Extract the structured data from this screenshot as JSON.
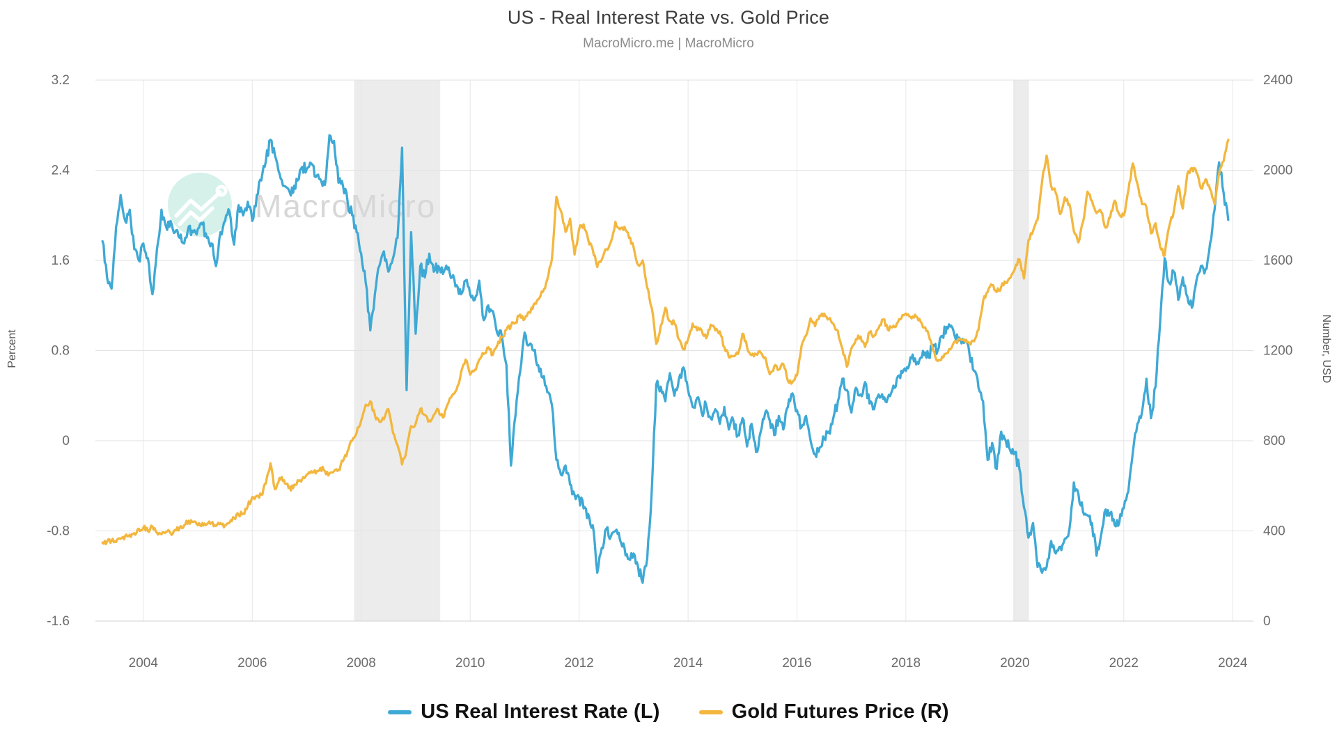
{
  "title": "US - Real Interest Rate vs. Gold Price",
  "subtitle": "MacroMicro.me | MacroMicro",
  "watermark": {
    "text": "MacroMicro",
    "icon": "macromicro-logo-icon",
    "circle_color": "#d5f1ea",
    "text_color": "#d7d7d7"
  },
  "legend": [
    {
      "label": "US Real Interest Rate (L)",
      "color": "#3FA9D5"
    },
    {
      "label": "Gold Futures Price (R)",
      "color": "#F3B73F"
    }
  ],
  "chart_data": {
    "type": "line",
    "title": "US - Real Interest Rate vs. Gold Price",
    "subtitle": "MacroMicro.me | MacroMicro",
    "x_start": 2003.25,
    "x_step_months": 1,
    "x_axis": {
      "tick_labels": [
        "2004",
        "2006",
        "2008",
        "2010",
        "2012",
        "2014",
        "2016",
        "2018",
        "2020",
        "2022",
        "2024"
      ],
      "tick_values": [
        2004,
        2006,
        2008,
        2010,
        2012,
        2014,
        2016,
        2018,
        2020,
        2022,
        2024
      ]
    },
    "y_left": {
      "label": "Percent",
      "range": [
        -1.6,
        3.2
      ],
      "tick_values": [
        3.2,
        2.4,
        1.6,
        0.8,
        0,
        -0.8,
        -1.6
      ],
      "tick_labels": [
        "3.2",
        "2.4",
        "1.6",
        "0.8",
        "0",
        "-0.8",
        "-1.6"
      ]
    },
    "y_right": {
      "label": "Number, USD",
      "range": [
        0,
        2400
      ],
      "tick_values": [
        2400,
        2000,
        1600,
        1200,
        800,
        400,
        0
      ],
      "tick_labels": [
        "2400",
        "2000",
        "1600",
        "1200",
        "800",
        "400",
        "0"
      ]
    },
    "recession_bands": [
      [
        2007.87,
        2009.45
      ],
      [
        2019.97,
        2020.26
      ]
    ],
    "grid": true,
    "legend_position": "bottom",
    "series": [
      {
        "name": "US Real Interest Rate (L)",
        "axis": "left",
        "color": "#3FA9D5",
        "values": [
          1.77,
          1.45,
          1.35,
          1.9,
          2.18,
          1.95,
          2.05,
          1.7,
          1.6,
          1.75,
          1.62,
          1.3,
          1.7,
          2.05,
          1.9,
          1.95,
          1.85,
          1.8,
          1.75,
          1.9,
          1.85,
          1.88,
          1.92,
          1.8,
          1.75,
          1.55,
          1.85,
          1.95,
          2.03,
          1.74,
          2.09,
          2.0,
          2.12,
          1.95,
          2.18,
          2.31,
          2.48,
          2.67,
          2.53,
          2.37,
          2.26,
          2.23,
          2.2,
          2.31,
          2.43,
          2.41,
          2.46,
          2.34,
          2.32,
          2.27,
          2.71,
          2.66,
          2.29,
          2.26,
          2.12,
          2.0,
          1.85,
          1.66,
          1.4,
          0.98,
          1.3,
          1.55,
          1.68,
          1.5,
          1.62,
          1.8,
          2.6,
          0.45,
          1.85,
          0.95,
          1.55,
          1.45,
          1.66,
          1.5,
          1.55,
          1.48,
          1.52,
          1.45,
          1.38,
          1.3,
          1.42,
          1.3,
          1.25,
          1.42,
          1.07,
          1.2,
          1.15,
          0.95,
          0.92,
          0.67,
          -0.22,
          0.23,
          0.61,
          0.96,
          0.85,
          0.8,
          0.67,
          0.56,
          0.43,
          0.32,
          -0.17,
          -0.3,
          -0.22,
          -0.39,
          -0.48,
          -0.5,
          -0.6,
          -0.65,
          -0.75,
          -1.17,
          -0.95,
          -0.78,
          -0.85,
          -0.8,
          -0.88,
          -0.95,
          -1.05,
          -1.0,
          -1.12,
          -1.26,
          -1.05,
          -0.45,
          0.5,
          0.48,
          0.35,
          0.6,
          0.4,
          0.55,
          0.65,
          0.45,
          0.3,
          0.38,
          0.25,
          0.32,
          0.2,
          0.28,
          0.15,
          0.3,
          0.1,
          0.18,
          0.05,
          0.2,
          -0.05,
          0.15,
          -0.1,
          0.08,
          0.25,
          0.18,
          0.05,
          0.22,
          0.1,
          0.3,
          0.42,
          0.27,
          0.12,
          0.22,
          0.0,
          -0.12,
          -0.06,
          0.02,
          0.08,
          0.2,
          0.35,
          0.55,
          0.45,
          0.25,
          0.47,
          0.41,
          0.52,
          0.33,
          0.28,
          0.41,
          0.37,
          0.38,
          0.45,
          0.55,
          0.62,
          0.62,
          0.74,
          0.73,
          0.72,
          0.76,
          0.74,
          0.85,
          0.8,
          0.93,
          1.01,
          1.02,
          0.9,
          0.9,
          0.88,
          0.77,
          0.62,
          0.47,
          0.35,
          -0.17,
          -0.02,
          -0.25,
          0.08,
          0.0,
          -0.09,
          -0.1,
          -0.25,
          -0.59,
          -0.86,
          -0.73,
          -1.12,
          -1.17,
          -1.12,
          -0.89,
          -1.0,
          -0.94,
          -0.87,
          -0.79,
          -0.37,
          -0.47,
          -0.63,
          -0.66,
          -0.73,
          -1.02,
          -0.84,
          -0.61,
          -0.64,
          -0.75,
          -0.73,
          -0.6,
          -0.45,
          -0.1,
          0.15,
          0.25,
          0.55,
          0.2,
          0.48,
          1.05,
          1.62,
          1.4,
          1.5,
          1.25,
          1.45,
          1.28,
          1.18,
          1.42,
          1.55,
          1.52,
          1.75,
          2.05,
          2.47,
          2.2,
          1.96
        ]
      },
      {
        "name": "Gold Futures Price (R)",
        "axis": "right",
        "color": "#F3B73F",
        "values": [
          348,
          352,
          356,
          351,
          365,
          378,
          383,
          390,
          410,
          414,
          400,
          420,
          392,
          385,
          395,
          390,
          405,
          415,
          425,
          445,
          440,
          425,
          435,
          430,
          435,
          422,
          435,
          425,
          437,
          456,
          470,
          477,
          510,
          550,
          556,
          560,
          610,
          700,
          585,
          635,
          625,
          590,
          590,
          625,
          630,
          650,
          665,
          655,
          680,
          665,
          655,
          665,
          672,
          710,
          755,
          800,
          835,
          890,
          960,
          975,
          915,
          885,
          895,
          940,
          835,
          780,
          695,
          760,
          865,
          875,
          940,
          915,
          890,
          915,
          938,
          903,
          961,
          1000,
          1026,
          1104,
          1160,
          1093,
          1115,
          1160,
          1185,
          1215,
          1182,
          1225,
          1260,
          1293,
          1310,
          1325,
          1360,
          1340,
          1370,
          1405,
          1427,
          1460,
          1516,
          1604,
          1882,
          1820,
          1727,
          1785,
          1626,
          1738,
          1760,
          1693,
          1648,
          1571,
          1604,
          1650,
          1682,
          1771,
          1738,
          1749,
          1700,
          1660,
          1580,
          1600,
          1480,
          1390,
          1230,
          1310,
          1390,
          1330,
          1320,
          1250,
          1205,
          1250,
          1320,
          1290,
          1290,
          1255,
          1315,
          1290,
          1285,
          1215,
          1170,
          1175,
          1185,
          1275,
          1215,
          1180,
          1185,
          1190,
          1170,
          1095,
          1130,
          1115,
          1140,
          1065,
          1060,
          1090,
          1220,
          1266,
          1343,
          1308,
          1355,
          1364,
          1340,
          1320,
          1288,
          1210,
          1128,
          1210,
          1251,
          1262,
          1216,
          1282,
          1266,
          1300,
          1338,
          1293,
          1303,
          1320,
          1343,
          1364,
          1349,
          1359,
          1340,
          1303,
          1272,
          1200,
          1154,
          1174,
          1189,
          1210,
          1241,
          1251,
          1241,
          1231,
          1241,
          1293,
          1420,
          1460,
          1490,
          1460,
          1483,
          1500,
          1522,
          1563,
          1605,
          1520,
          1690,
          1730,
          1780,
          1950,
          2065,
          1930,
          1900,
          1805,
          1880,
          1850,
          1730,
          1680,
          1770,
          1905,
          1865,
          1810,
          1815,
          1745,
          1790,
          1865,
          1805,
          1800,
          1910,
          2030,
          1940,
          1850,
          1835,
          1720,
          1765,
          1660,
          1622,
          1750,
          1815,
          1930,
          1830,
          1985,
          2010,
          1990,
          1920,
          1960,
          1915,
          1850,
          1985,
          2040,
          2135
        ]
      }
    ],
    "layout": {
      "noise_texture": {
        "left": 0.05,
        "right": 12
      }
    }
  }
}
